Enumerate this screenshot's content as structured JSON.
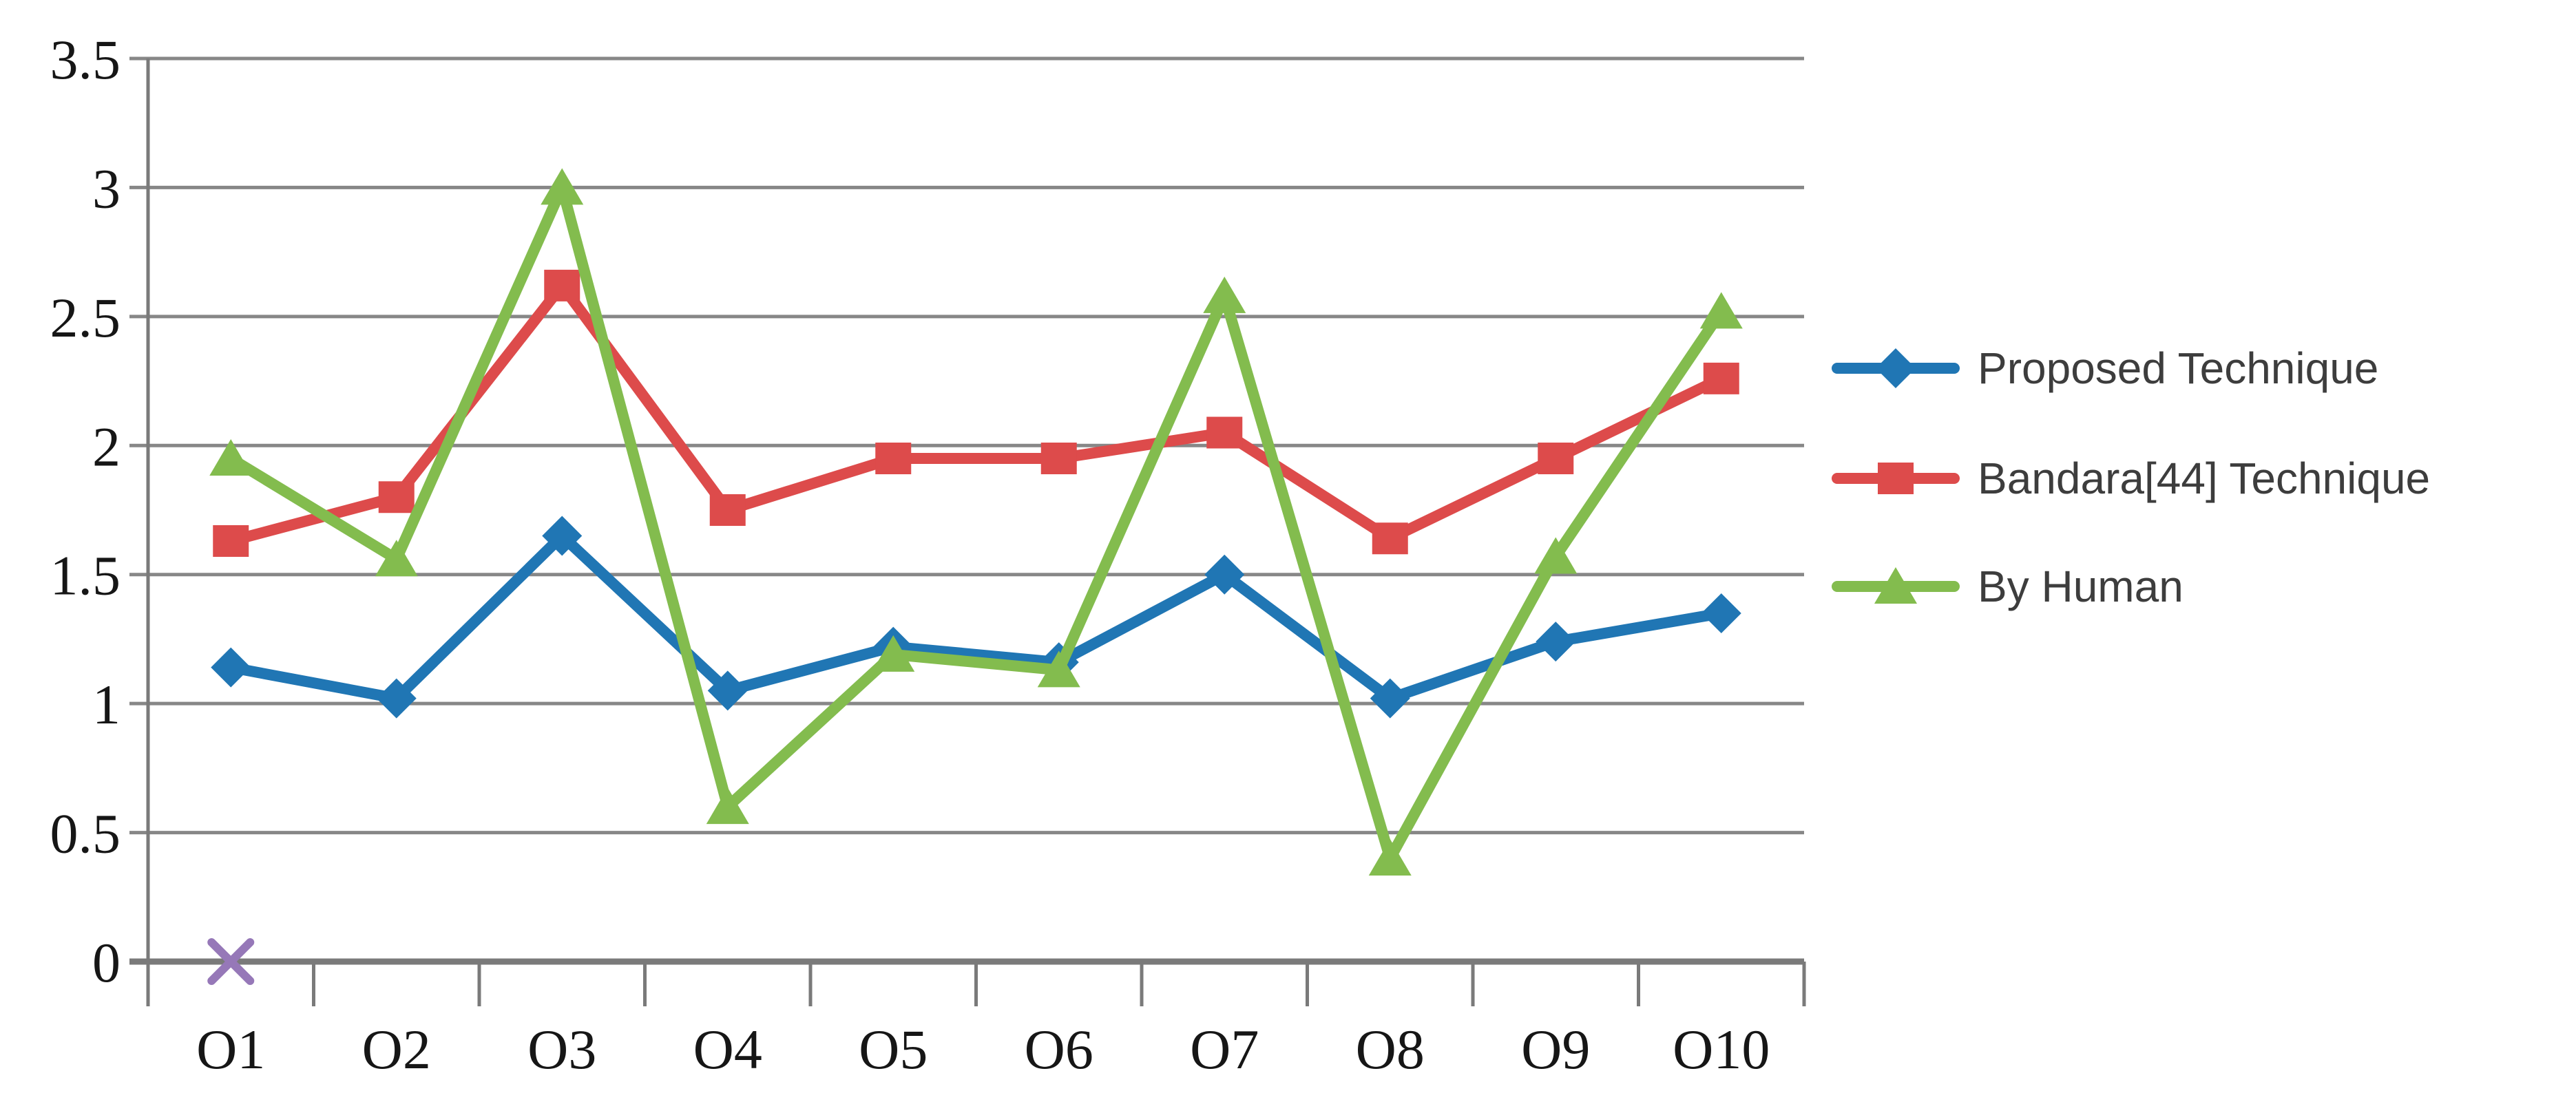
{
  "chart_data": {
    "type": "line",
    "title": "",
    "xlabel": "",
    "ylabel": "",
    "categories": [
      "O1",
      "O2",
      "O3",
      "O4",
      "O5",
      "O6",
      "O7",
      "O8",
      "O9",
      "O10"
    ],
    "series": [
      {
        "name": "Proposed Technique",
        "marker": "diamond",
        "color": "#2076B4",
        "values": [
          1.14,
          1.02,
          1.65,
          1.05,
          1.22,
          1.16,
          1.5,
          1.02,
          1.24,
          1.35
        ]
      },
      {
        "name": "Bandara[44] Technique",
        "marker": "square",
        "color": "#DD4B4B",
        "values": [
          1.63,
          1.8,
          2.62,
          1.75,
          1.95,
          1.95,
          2.05,
          1.64,
          1.95,
          2.26
        ]
      },
      {
        "name": "By Human",
        "marker": "triangle",
        "color": "#83BC4E",
        "values": [
          1.95,
          1.56,
          3.0,
          0.6,
          1.19,
          1.13,
          2.58,
          0.4,
          1.57,
          2.52
        ]
      }
    ],
    "extra_markers": [
      {
        "category": "O1",
        "value": 0,
        "marker": "x",
        "color": "#9678B8"
      }
    ],
    "y_axis": {
      "min": 0,
      "max": 3.5,
      "step": 0.5,
      "tick_labels": [
        "3.5",
        "3",
        "2.5",
        "2",
        "1.5",
        "1",
        "0.5",
        "0"
      ]
    },
    "legend": {
      "position": "right",
      "entries": [
        "Proposed Technique",
        "Bandara[44] Technique",
        "By Human"
      ]
    },
    "grid": true,
    "grid_color": "#878787",
    "axis_color": "#7a7a7a",
    "background": "#ffffff"
  }
}
